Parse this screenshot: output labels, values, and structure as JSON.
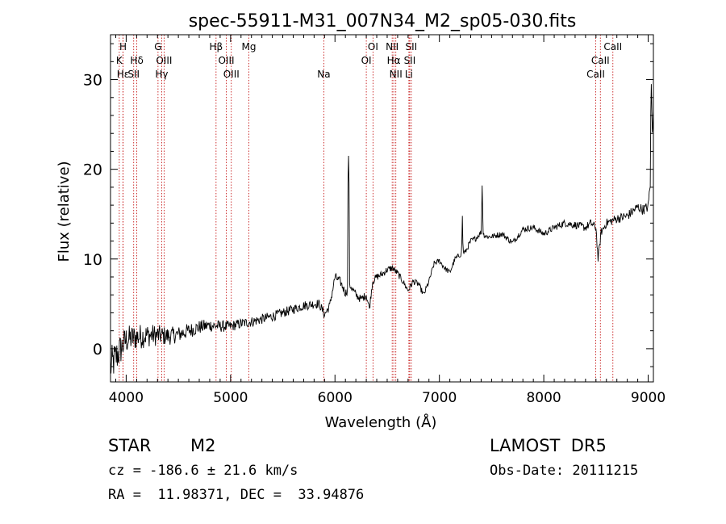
{
  "chart_data": {
    "type": "line",
    "title": "spec-55911-M31_007N34_M2_sp05-030.fits",
    "xlabel": "Wavelength (Å)",
    "ylabel": "Flux (relative)",
    "xlim": [
      3850,
      9050
    ],
    "ylim": [
      -3.7,
      35
    ],
    "x_ticks": [
      4000,
      5000,
      6000,
      7000,
      8000,
      9000
    ],
    "y_ticks": [
      0,
      10,
      20,
      30
    ],
    "grid": false,
    "line_color": "#000000",
    "marker_color": "#c00000",
    "spectral_lines": [
      {
        "label": "H",
        "wavelength": 3970,
        "row": 0
      },
      {
        "label": "K",
        "wavelength": 3934,
        "row": 1
      },
      {
        "label": "Hε",
        "wavelength": 3970,
        "row": 2
      },
      {
        "label": "Hδ",
        "wavelength": 4102,
        "row": 1
      },
      {
        "label": "SII",
        "wavelength": 4072,
        "row": 2
      },
      {
        "label": "G",
        "wavelength": 4305,
        "row": 0
      },
      {
        "label": "OIII",
        "wavelength": 4363,
        "row": 1
      },
      {
        "label": "Hγ",
        "wavelength": 4340,
        "row": 2
      },
      {
        "label": "Hβ",
        "wavelength": 4861,
        "row": 0
      },
      {
        "label": "OIII",
        "wavelength": 4959,
        "row": 1
      },
      {
        "label": "OIII",
        "wavelength": 5007,
        "row": 2
      },
      {
        "label": "Mg",
        "wavelength": 5175,
        "row": 0
      },
      {
        "label": "Na",
        "wavelength": 5893,
        "row": 2
      },
      {
        "label": "OI",
        "wavelength": 6364,
        "row": 0
      },
      {
        "label": "OI",
        "wavelength": 6300,
        "row": 1
      },
      {
        "label": "NII",
        "wavelength": 6548,
        "row": 0
      },
      {
        "label": "Hα",
        "wavelength": 6563,
        "row": 1
      },
      {
        "label": "NII",
        "wavelength": 6583,
        "row": 2
      },
      {
        "label": "SII",
        "wavelength": 6731,
        "row": 0
      },
      {
        "label": "SII",
        "wavelength": 6716,
        "row": 1
      },
      {
        "label": "Li",
        "wavelength": 6708,
        "row": 2
      },
      {
        "label": "CaII",
        "wavelength": 8662,
        "row": 0
      },
      {
        "label": "CaII",
        "wavelength": 8542,
        "row": 1
      },
      {
        "label": "CaII",
        "wavelength": 8498,
        "row": 2
      }
    ],
    "continuum": {
      "x": [
        3850,
        3900,
        4000,
        4100,
        4200,
        4300,
        4400,
        4500,
        4600,
        4700,
        4800,
        4900,
        5000,
        5100,
        5200,
        5300,
        5400,
        5500,
        5600,
        5700,
        5800,
        5850,
        5900,
        5950,
        6000,
        6050,
        6100,
        6150,
        6200,
        6250,
        6300,
        6330,
        6360,
        6400,
        6450,
        6500,
        6550,
        6600,
        6650,
        6700,
        6750,
        6800,
        6850,
        6900,
        6950,
        7000,
        7050,
        7100,
        7150,
        7200,
        7250,
        7300,
        7350,
        7400,
        7450,
        7500,
        7600,
        7700,
        7800,
        7900,
        8000,
        8100,
        8200,
        8300,
        8400,
        8450,
        8500,
        8520,
        8550,
        8600,
        8700,
        8800,
        8900,
        8950,
        9000,
        9030,
        9050
      ],
      "y": [
        -2.0,
        -1.0,
        1.0,
        1.3,
        1.5,
        1.5,
        1.4,
        1.6,
        2.0,
        2.4,
        2.6,
        2.5,
        2.5,
        2.8,
        3.0,
        3.3,
        3.6,
        4.0,
        4.4,
        4.8,
        5.0,
        5.0,
        3.8,
        4.8,
        8.0,
        7.5,
        6.2,
        7.0,
        6.0,
        5.5,
        6.0,
        4.5,
        7.5,
        8.0,
        8.3,
        8.8,
        9.0,
        8.4,
        7.5,
        6.5,
        7.5,
        7.2,
        6.0,
        7.5,
        9.5,
        9.8,
        9.0,
        8.5,
        10.0,
        10.5,
        10.8,
        12.0,
        12.3,
        13.0,
        12.5,
        12.5,
        12.8,
        11.8,
        13.3,
        13.5,
        12.8,
        13.5,
        14.0,
        13.8,
        13.5,
        14.0,
        13.5,
        10.0,
        13.0,
        14.0,
        14.5,
        14.8,
        15.8,
        15.5,
        15.8,
        20.0,
        27.5
      ]
    },
    "spikes": {
      "x": [
        6130,
        7220,
        7410,
        9030
      ],
      "y": [
        21.5,
        14.8,
        18.2,
        29.5
      ]
    },
    "noise_amplitude": {
      "x": [
        3850,
        4000,
        4500,
        5000,
        6000,
        7000,
        8000,
        9000,
        9050
      ],
      "y": [
        2.2,
        1.6,
        0.9,
        0.6,
        0.5,
        0.3,
        0.35,
        0.6,
        1.2
      ]
    }
  },
  "info": {
    "object_class": "STAR",
    "subclass": "M2",
    "survey": "LAMOST  DR5",
    "velocity": "cz = -186.6 ± 21.6 km/s",
    "obs_date": "Obs-Date: 20111215",
    "coordinates": "RA =  11.98371, DEC =  33.94876"
  }
}
